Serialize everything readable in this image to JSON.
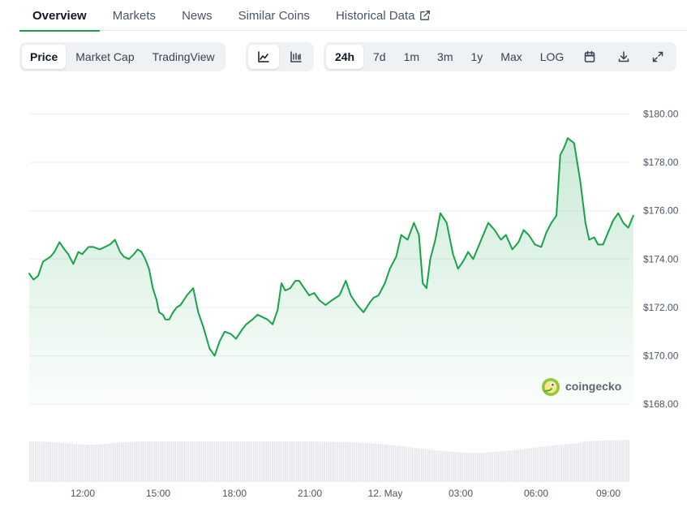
{
  "nav": {
    "tabs": [
      {
        "label": "Overview",
        "active": true
      },
      {
        "label": "Markets"
      },
      {
        "label": "News"
      },
      {
        "label": "Similar Coins"
      },
      {
        "label": "Historical Data",
        "icon": "external-link-icon"
      }
    ]
  },
  "toolbar": {
    "data_tabs": [
      {
        "label": "Price",
        "active": true
      },
      {
        "label": "Market Cap"
      },
      {
        "label": "TradingView"
      }
    ],
    "chart_type_icons": [
      {
        "icon": "line-chart-icon",
        "active": true
      },
      {
        "icon": "candlestick-chart-icon"
      }
    ],
    "ranges": [
      {
        "label": "24h",
        "active": true
      },
      {
        "label": "7d"
      },
      {
        "label": "1m"
      },
      {
        "label": "3m"
      },
      {
        "label": "1y"
      },
      {
        "label": "Max"
      },
      {
        "label": "LOG"
      }
    ],
    "action_icons": [
      "calendar-icon",
      "download-icon",
      "fullscreen-icon"
    ]
  },
  "watermark": {
    "text": "coingecko",
    "icon": "coingecko-logo-icon"
  },
  "colors": {
    "line": "#16a34a",
    "accent": "#16a34a",
    "volume": "#e5e7eb",
    "grid": "#eceef1"
  },
  "chart_data": {
    "type": "area",
    "x_tick_labels": [
      "12:00",
      "15:00",
      "18:00",
      "21:00",
      "12. May",
      "03:00",
      "06:00",
      "09:00"
    ],
    "y_tick_labels": [
      "$168.00",
      "$170.00",
      "$172.00",
      "$174.00",
      "$176.00",
      "$178.00",
      "$180.00"
    ],
    "y_ticks": [
      168,
      170,
      172,
      174,
      176,
      178,
      180
    ],
    "ylim": [
      167.3,
      181.3
    ],
    "grid": true,
    "series": [
      {
        "x_hours": [
          0,
          0.17,
          0.35,
          0.55,
          0.85,
          1.0,
          1.2,
          1.4,
          1.55,
          1.75,
          1.95,
          2.1,
          2.35,
          2.55,
          2.8,
          3.0,
          3.2,
          3.4,
          3.6,
          3.75,
          3.95,
          4.15,
          4.3,
          4.45,
          4.6,
          4.75,
          4.9,
          5.05,
          5.15,
          5.3,
          5.4,
          5.55,
          5.7,
          5.85,
          6.0,
          6.25,
          6.5,
          6.7,
          6.9,
          7.15,
          7.35,
          7.55,
          7.75,
          8.0,
          8.2,
          8.45,
          8.6,
          8.85,
          9.05,
          9.25,
          9.45,
          9.65,
          9.85,
          10.0,
          10.15,
          10.35,
          10.55,
          10.7,
          10.9,
          11.1,
          11.3,
          11.5,
          11.75,
          12.0,
          12.3,
          12.55,
          12.75,
          13.0,
          13.25,
          13.5,
          13.65,
          13.85,
          14.1,
          14.3,
          14.55,
          14.75,
          15.0,
          15.25,
          15.45,
          15.6,
          15.75,
          15.9,
          16.1,
          16.3,
          16.55,
          16.8,
          17.0,
          17.2,
          17.4,
          17.6,
          17.8,
          18.0,
          18.2,
          18.45,
          18.7,
          18.9,
          19.15,
          19.4,
          19.6,
          19.8,
          20.05,
          20.3,
          20.5,
          20.7,
          20.9,
          21.05,
          21.2,
          21.35,
          21.6,
          21.85,
          22.05,
          22.2,
          22.4,
          22.55,
          22.75,
          22.95,
          23.15,
          23.35,
          23.55,
          23.75,
          23.95
        ],
        "y": [
          173.4,
          173.15,
          173.3,
          173.9,
          174.1,
          174.3,
          174.7,
          174.4,
          174.2,
          173.8,
          174.3,
          174.2,
          174.5,
          174.5,
          174.4,
          174.5,
          174.6,
          174.8,
          174.3,
          174.1,
          174.0,
          174.2,
          174.4,
          174.3,
          174.0,
          173.6,
          172.8,
          172.3,
          171.8,
          171.7,
          171.5,
          171.5,
          171.8,
          172.0,
          172.1,
          172.5,
          172.8,
          171.8,
          171.2,
          170.3,
          170.0,
          170.6,
          171.0,
          170.9,
          170.7,
          171.1,
          171.3,
          171.5,
          171.7,
          171.6,
          171.5,
          171.3,
          171.9,
          173.0,
          172.7,
          172.8,
          173.1,
          173.1,
          172.8,
          172.5,
          172.6,
          172.3,
          172.1,
          172.3,
          172.5,
          173.1,
          172.5,
          172.1,
          171.8,
          172.2,
          172.4,
          172.5,
          173.0,
          173.6,
          174.1,
          175.0,
          174.8,
          175.5,
          175.0,
          173.0,
          172.8,
          174.0,
          174.8,
          175.9,
          175.5,
          174.2,
          173.6,
          173.9,
          174.3,
          174.0,
          174.5,
          175.0,
          175.5,
          175.2,
          174.8,
          175.0,
          174.4,
          174.7,
          175.2,
          175.0,
          174.6,
          174.5,
          175.1,
          175.5,
          175.8,
          178.3,
          178.6,
          179.0,
          178.8,
          177.2,
          175.5,
          174.8,
          174.9,
          174.6,
          174.6,
          175.1,
          175.6,
          175.9,
          175.5,
          175.3,
          175.8
        ],
        "note_units": "price in USD, x in hours elapsed"
      }
    ]
  }
}
